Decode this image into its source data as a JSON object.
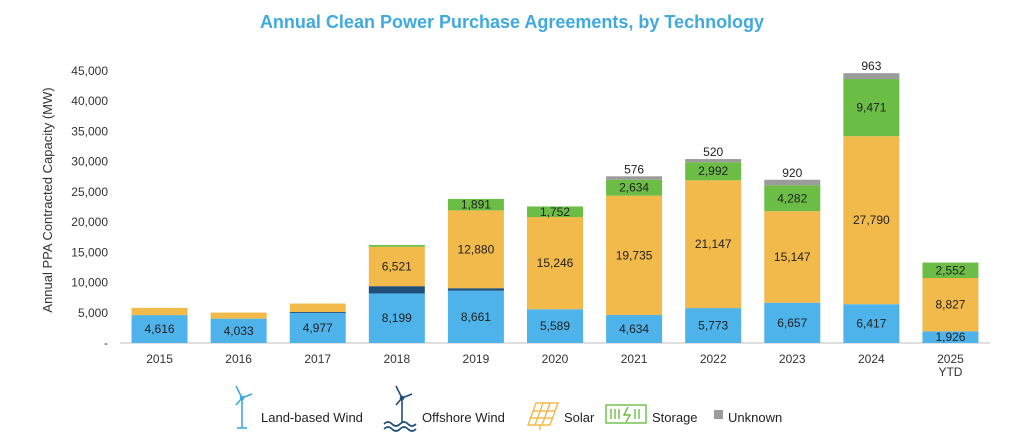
{
  "chart_data": {
    "type": "bar",
    "stacked": true,
    "title": "Annual Clean Power Purchase Agreements, by Technology",
    "xlabel": "",
    "ylabel": "Annual PPA Contracted Capacity (MW)",
    "ylim": [
      0,
      45000
    ],
    "yticks": [
      0,
      5000,
      10000,
      15000,
      20000,
      25000,
      30000,
      35000,
      40000,
      45000
    ],
    "ytick_labels": [
      "-",
      "5,000",
      "10,000",
      "15,000",
      "20,000",
      "25,000",
      "30,000",
      "35,000",
      "40,000",
      "45,000"
    ],
    "grid": false,
    "legend_position": "bottom",
    "categories": [
      "2015",
      "2016",
      "2017",
      "2018",
      "2019",
      "2020",
      "2021",
      "2022",
      "2023",
      "2024",
      "2025\nYTD"
    ],
    "series": [
      {
        "name": "Land-based Wind",
        "color": "#4db3ea",
        "icon": "wind-turbine-icon",
        "values": [
          4616,
          4033,
          4977,
          8199,
          8661,
          5589,
          4634,
          5773,
          6657,
          6417,
          1926
        ],
        "labels": [
          "4,616",
          "4,033",
          "4,977",
          "8,199",
          "8,661",
          "5,589",
          "4,634",
          "5,773",
          "6,657",
          "6,417",
          "1,926"
        ]
      },
      {
        "name": "Offshore Wind",
        "color": "#1f4e79",
        "icon": "offshore-wind-icon",
        "values": [
          0,
          0,
          150,
          1200,
          400,
          0,
          0,
          0,
          0,
          0,
          0
        ],
        "labels": [
          "",
          "",
          "",
          "",
          "",
          "",
          "",
          "",
          "",
          "",
          ""
        ]
      },
      {
        "name": "Solar",
        "color": "#f2b94b",
        "icon": "solar-panel-icon",
        "values": [
          1200,
          1000,
          1400,
          6521,
          12880,
          15246,
          19735,
          21147,
          15147,
          27790,
          8827
        ],
        "labels": [
          "",
          "",
          "",
          "6,521",
          "12,880",
          "15,246",
          "19,735",
          "21,147",
          "15,147",
          "27,790",
          "8,827"
        ]
      },
      {
        "name": "Storage",
        "color": "#6cbd45",
        "icon": "battery-storage-icon",
        "values": [
          0,
          0,
          0,
          300,
          1891,
          1752,
          2634,
          2992,
          4282,
          9471,
          2552
        ],
        "labels": [
          "",
          "",
          "",
          "",
          "1,891",
          "1,752",
          "2,634",
          "2,992",
          "4,282",
          "9,471",
          "2,552"
        ]
      },
      {
        "name": "Unknown",
        "color": "#9b9b9b",
        "icon": "square-icon",
        "values": [
          0,
          0,
          0,
          0,
          0,
          0,
          576,
          520,
          920,
          963,
          0
        ],
        "labels": [
          "",
          "",
          "",
          "",
          "",
          "",
          "576",
          "520",
          "920",
          "963",
          ""
        ]
      }
    ]
  }
}
